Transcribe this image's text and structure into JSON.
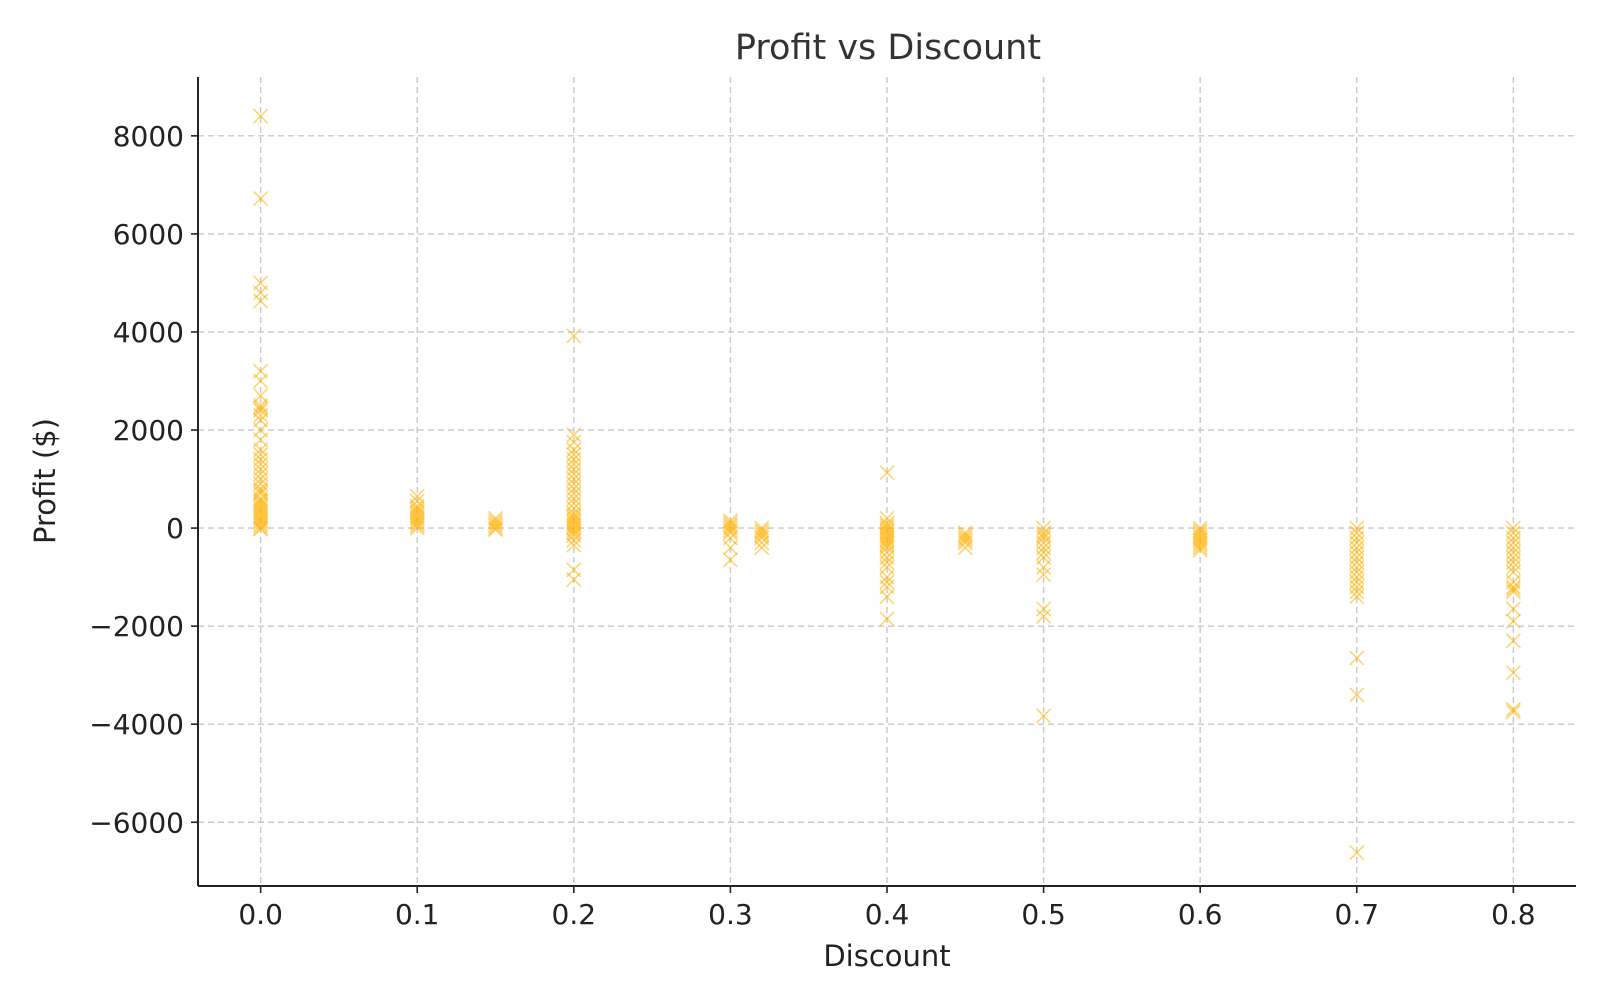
{
  "chart_data": {
    "type": "scatter",
    "title": "Profit vs Discount",
    "xlabel": "Discount",
    "ylabel": "Profit ($)",
    "xlim": [
      -0.04,
      0.84
    ],
    "ylim": [
      -7300,
      9200
    ],
    "xticks": [
      "0.0",
      "0.1",
      "0.2",
      "0.3",
      "0.4",
      "0.5",
      "0.6",
      "0.7",
      "0.8"
    ],
    "yticks": [
      "−6000",
      "−4000",
      "−2000",
      "0",
      "2000",
      "4000",
      "6000",
      "8000"
    ],
    "grid": true,
    "marker": "x",
    "color": "#FFB000",
    "series": [
      {
        "x": [
          0.0,
          0.0,
          0.0,
          0.0,
          0.0,
          0.0,
          0.0,
          0.0,
          0.0,
          0.0,
          0.0,
          0.0,
          0.0,
          0.0,
          0.0,
          0.0,
          0.0,
          0.0,
          0.0,
          0.0,
          0.0,
          0.0,
          0.0,
          0.0,
          0.0,
          0.0,
          0.0,
          0.0,
          0.0,
          0.0,
          0.0,
          0.0,
          0.0,
          0.0,
          0.0,
          0.0,
          0.0,
          0.0,
          0.0,
          0.0,
          0.1,
          0.1,
          0.1,
          0.1,
          0.1,
          0.1,
          0.1,
          0.1,
          0.1,
          0.1,
          0.1,
          0.1,
          0.15,
          0.15,
          0.15,
          0.15,
          0.15,
          0.15,
          0.2,
          0.2,
          0.2,
          0.2,
          0.2,
          0.2,
          0.2,
          0.2,
          0.2,
          0.2,
          0.2,
          0.2,
          0.2,
          0.2,
          0.2,
          0.2,
          0.2,
          0.2,
          0.2,
          0.2,
          0.2,
          0.2,
          0.2,
          0.2,
          0.2,
          0.2,
          0.2,
          0.2,
          0.2,
          0.2,
          0.3,
          0.3,
          0.3,
          0.3,
          0.3,
          0.3,
          0.3,
          0.3,
          0.3,
          0.32,
          0.32,
          0.32,
          0.32,
          0.32,
          0.32,
          0.32,
          0.4,
          0.4,
          0.4,
          0.4,
          0.4,
          0.4,
          0.4,
          0.4,
          0.4,
          0.4,
          0.4,
          0.4,
          0.4,
          0.4,
          0.4,
          0.4,
          0.4,
          0.4,
          0.4,
          0.4,
          0.4,
          0.4,
          0.45,
          0.45,
          0.45,
          0.45,
          0.45,
          0.45,
          0.5,
          0.5,
          0.5,
          0.5,
          0.5,
          0.5,
          0.5,
          0.5,
          0.5,
          0.5,
          0.5,
          0.5,
          0.5,
          0.6,
          0.6,
          0.6,
          0.6,
          0.6,
          0.6,
          0.6,
          0.6,
          0.6,
          0.6,
          0.7,
          0.7,
          0.7,
          0.7,
          0.7,
          0.7,
          0.7,
          0.7,
          0.7,
          0.7,
          0.7,
          0.7,
          0.7,
          0.7,
          0.7,
          0.7,
          0.7,
          0.7,
          0.8,
          0.8,
          0.8,
          0.8,
          0.8,
          0.8,
          0.8,
          0.8,
          0.8,
          0.8,
          0.8,
          0.8,
          0.8,
          0.8,
          0.8,
          0.8,
          0.8,
          0.8,
          0.8,
          0.8
        ],
        "y": [
          8400,
          6720,
          5000,
          4800,
          4630,
          3200,
          3000,
          2700,
          2500,
          2450,
          2400,
          2300,
          2200,
          2000,
          1800,
          1600,
          1500,
          1400,
          1300,
          1200,
          1100,
          1000,
          900,
          800,
          750,
          700,
          600,
          550,
          500,
          450,
          400,
          350,
          300,
          250,
          200,
          150,
          100,
          50,
          0,
          -20,
          650,
          550,
          450,
          400,
          350,
          300,
          250,
          200,
          150,
          100,
          50,
          0,
          200,
          150,
          100,
          50,
          0,
          -30,
          3920,
          1900,
          1750,
          1600,
          1500,
          1400,
          1300,
          1200,
          1100,
          1000,
          900,
          800,
          700,
          600,
          500,
          400,
          300,
          250,
          200,
          150,
          100,
          50,
          0,
          -50,
          -100,
          -150,
          -250,
          -350,
          -850,
          -1050,
          150,
          100,
          50,
          0,
          -50,
          -100,
          -200,
          -400,
          -650,
          0,
          -50,
          -100,
          -150,
          -200,
          -300,
          -400,
          1130,
          200,
          100,
          50,
          0,
          -50,
          -100,
          -150,
          -200,
          -250,
          -300,
          -350,
          -400,
          -500,
          -600,
          -700,
          -800,
          -1000,
          -1100,
          -1200,
          -1400,
          -1850,
          -100,
          -150,
          -200,
          -250,
          -300,
          -400,
          0,
          -100,
          -150,
          -200,
          -300,
          -400,
          -500,
          -600,
          -800,
          -950,
          -1650,
          -1800,
          -3830,
          0,
          -50,
          -100,
          -150,
          -200,
          -250,
          -300,
          -350,
          -400,
          -450,
          0,
          -100,
          -200,
          -300,
          -400,
          -500,
          -600,
          -700,
          -800,
          -900,
          -1000,
          -1100,
          -1200,
          -1300,
          -1400,
          -2650,
          -3400,
          -6620,
          0,
          -100,
          -200,
          -300,
          -400,
          -500,
          -600,
          -700,
          -800,
          -900,
          -1100,
          -1200,
          -1250,
          -1300,
          -1650,
          -1900,
          -2300,
          -2950,
          -3700,
          -3750
        ]
      }
    ]
  }
}
